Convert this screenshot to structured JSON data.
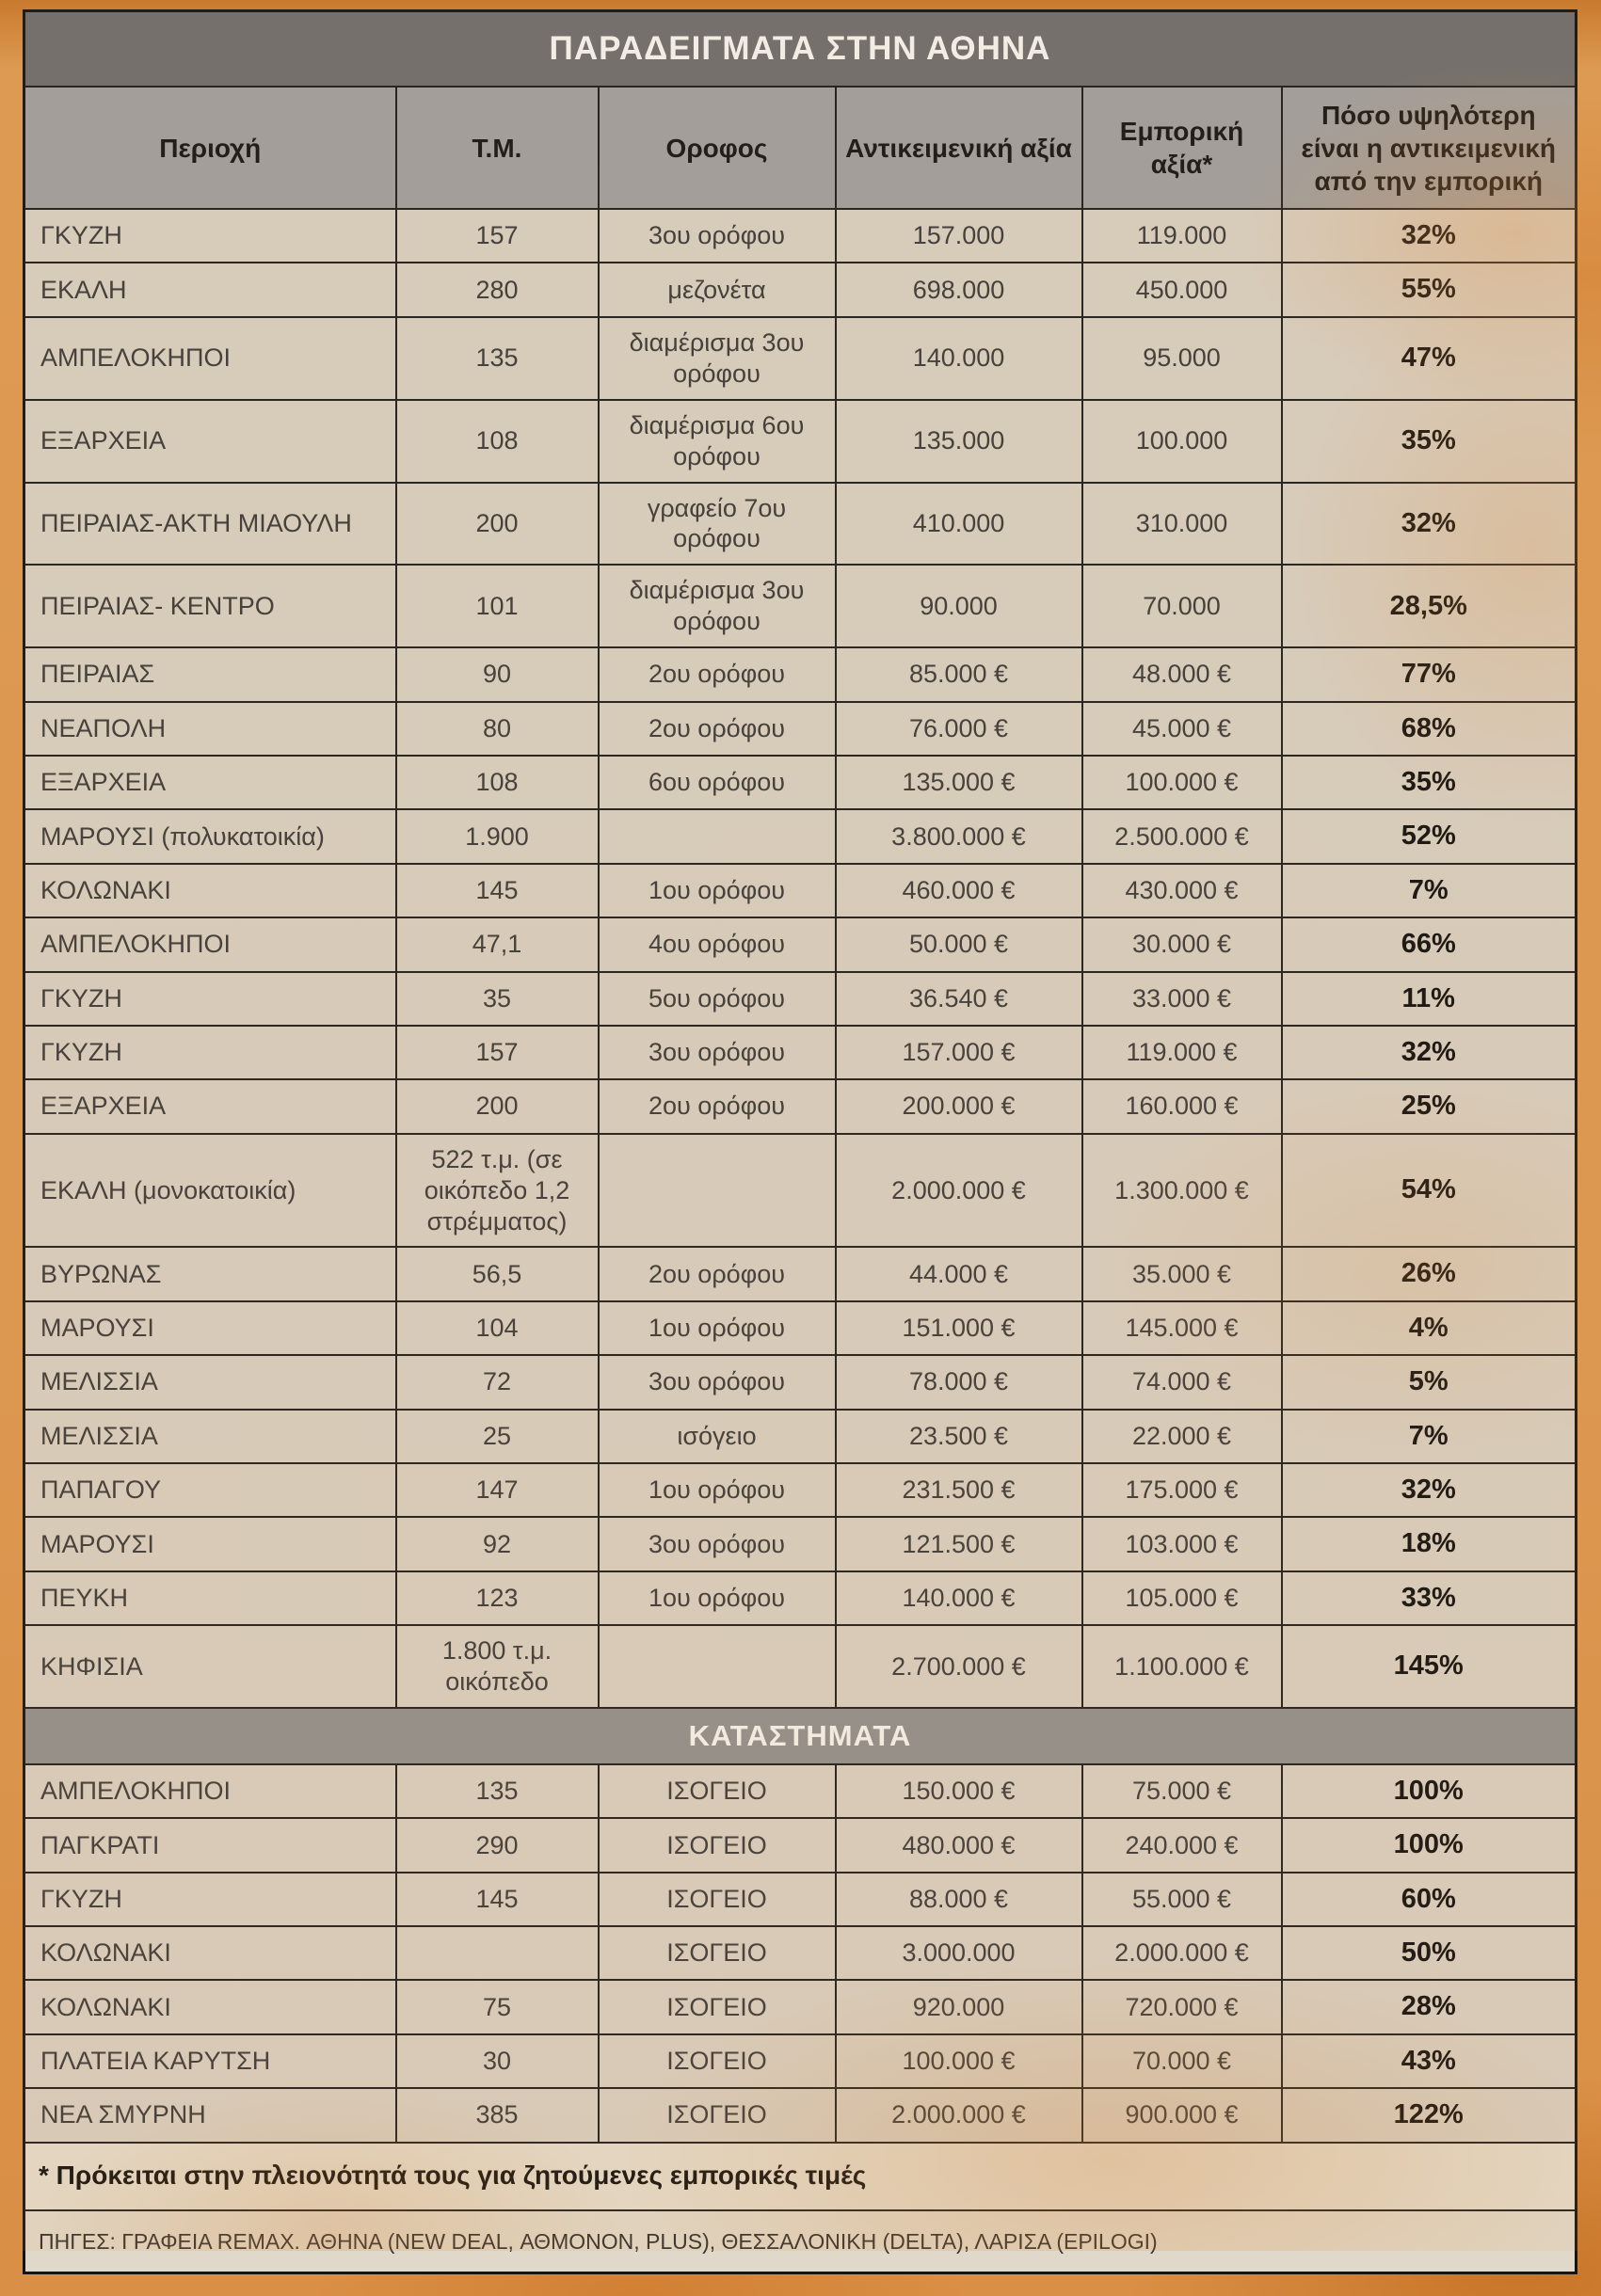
{
  "table": {
    "title": "ΠΑΡΑΔΕΙΓΜΑΤΑ ΣΤΗΝ ΑΘΗΝΑ",
    "columns": [
      "Περιοχή",
      "Τ.Μ.",
      "Οροφος",
      "Αντικειμενική αξία",
      "Εμπορική αξία*",
      "Πόσο υψηλότερη είναι η αντικειμενική από την εμπορική"
    ],
    "rows": [
      [
        "ΓΚΥΖΗ",
        "157",
        "3ου ορόφου",
        "157.000",
        "119.000",
        "32%"
      ],
      [
        "ΕΚΑΛΗ",
        "280",
        "μεζονέτα",
        "698.000",
        "450.000",
        "55%"
      ],
      [
        "ΑΜΠΕΛΟΚΗΠΟΙ",
        "135",
        "διαμέρισμα 3ου ορόφου",
        "140.000",
        "95.000",
        "47%"
      ],
      [
        "ΕΞΑΡΧΕΙΑ",
        "108",
        "διαμέρισμα 6ου ορόφου",
        "135.000",
        "100.000",
        "35%"
      ],
      [
        "ΠΕΙΡΑΙΑΣ-ΑΚΤΗ ΜΙΑΟΥΛΗ",
        "200",
        "γραφείο 7ου ορόφου",
        "410.000",
        "310.000",
        "32%"
      ],
      [
        "ΠΕΙΡΑΙΑΣ- ΚΕΝΤΡΟ",
        "101",
        "διαμέρισμα 3ου ορόφου",
        "90.000",
        "70.000",
        "28,5%"
      ],
      [
        "ΠΕΙΡΑΙΑΣ",
        "90",
        "2ου ορόφου",
        "85.000 €",
        "48.000 €",
        "77%"
      ],
      [
        "ΝΕΑΠΟΛΗ",
        "80",
        "2ου ορόφου",
        "76.000 €",
        "45.000 €",
        "68%"
      ],
      [
        "ΕΞΑΡΧΕΙΑ",
        "108",
        "6ου ορόφου",
        "135.000 €",
        "100.000 €",
        "35%"
      ],
      [
        "ΜΑΡΟΥΣΙ (πολυκατοικία)",
        "1.900",
        "",
        "3.800.000 €",
        "2.500.000 €",
        "52%"
      ],
      [
        "ΚΟΛΩΝΑΚΙ",
        "145",
        "1ου ορόφου",
        "460.000 €",
        "430.000 €",
        "7%"
      ],
      [
        "ΑΜΠΕΛΟΚΗΠΟΙ",
        "47,1",
        "4ου ορόφου",
        "50.000 €",
        "30.000 €",
        "66%"
      ],
      [
        "ΓΚΥΖΗ",
        "35",
        "5ου ορόφου",
        "36.540 €",
        "33.000 €",
        "11%"
      ],
      [
        "ΓΚΥΖΗ",
        "157",
        "3ου ορόφου",
        "157.000 €",
        "119.000 €",
        "32%"
      ],
      [
        "ΕΞΑΡΧΕΙΑ",
        "200",
        "2ου ορόφου",
        "200.000 €",
        "160.000 €",
        "25%"
      ],
      [
        "ΕΚΑΛΗ (μονοκατοικία)",
        "522 τ.μ. (σε οικόπεδο 1,2 στρέμματος)",
        "",
        "2.000.000 €",
        "1.300.000 €",
        "54%"
      ],
      [
        "ΒΥΡΩΝΑΣ",
        "56,5",
        "2ου ορόφου",
        "44.000 €",
        "35.000 €",
        "26%"
      ],
      [
        "ΜΑΡΟΥΣΙ",
        "104",
        "1ου ορόφου",
        "151.000 €",
        "145.000 €",
        "4%"
      ],
      [
        "ΜΕΛΙΣΣΙΑ",
        "72",
        "3ου ορόφου",
        "78.000 €",
        "74.000 €",
        "5%"
      ],
      [
        "ΜΕΛΙΣΣΙΑ",
        "25",
        "ισόγειο",
        "23.500 €",
        "22.000 €",
        "7%"
      ],
      [
        "ΠΑΠΑΓΟΥ",
        "147",
        "1ου ορόφου",
        "231.500 €",
        "175.000 €",
        "32%"
      ],
      [
        "ΜΑΡΟΥΣΙ",
        "92",
        "3ου ορόφου",
        "121.500 €",
        "103.000 €",
        "18%"
      ],
      [
        "ΠΕΥΚΗ",
        "123",
        "1ου ορόφου",
        "140.000 €",
        "105.000 €",
        "33%"
      ],
      [
        "ΚΗΦΙΣΙΑ",
        "1.800 τ.μ. οικόπεδο",
        "",
        "2.700.000 €",
        "1.100.000 €",
        "145%"
      ]
    ],
    "section2_title": "ΚΑΤΑΣΤΗΜΑΤΑ",
    "shops_rows": [
      [
        "ΑΜΠΕΛΟΚΗΠΟΙ",
        "135",
        "ΙΣΟΓΕΙΟ",
        "150.000 €",
        "75.000 €",
        "100%"
      ],
      [
        "ΠΑΓΚΡΑΤΙ",
        "290",
        "ΙΣΟΓΕΙΟ",
        "480.000 €",
        "240.000 €",
        "100%"
      ],
      [
        "ΓΚΥΖΗ",
        "145",
        "ΙΣΟΓΕΙΟ",
        "88.000 €",
        "55.000 €",
        "60%"
      ],
      [
        "ΚΟΛΩΝΑΚΙ",
        "",
        "ΙΣΟΓΕΙΟ",
        "3.000.000",
        "2.000.000 €",
        "50%"
      ],
      [
        "ΚΟΛΩΝΑΚΙ",
        "75",
        "ΙΣΟΓΕΙΟ",
        "920.000",
        "720.000 €",
        "28%"
      ],
      [
        "ΠΛΑΤΕΙΑ ΚΑΡΥΤΣΗ",
        "30",
        "ΙΣΟΓΕΙΟ",
        "100.000 €",
        "70.000 €",
        "43%"
      ],
      [
        "ΝΕΑ ΣΜΥΡΝΗ",
        "385",
        "ΙΣΟΓΕΙΟ",
        "2.000.000 €",
        "900.000 €",
        "122%"
      ]
    ],
    "footnote": "* Πρόκειται στην πλειονότητά τους για ζητούμενες εμπορικές τιμές",
    "sources": "ΠΗΓΕΣ: ΓΡΑΦΕΙΑ REMAX. ΑΘΗΝΑ (NEW DEAL, ΑΘΜΟΝΟΝ, PLUS), ΘΕΣΣΑΛΟΝΙΚΗ (DELTA), ΛΑΡΙΣΑ (EPILOGI)"
  },
  "colors": {
    "page_background": "#dc9750",
    "title_bar": "#6e6e6e",
    "header_row": "#9f9f9f",
    "section_bar": "#8f8f8f",
    "cell_background": "#d6cfc2",
    "border": "#1e1e1e",
    "title_text": "#f4f2ee",
    "body_text": "#3b3b3b"
  }
}
